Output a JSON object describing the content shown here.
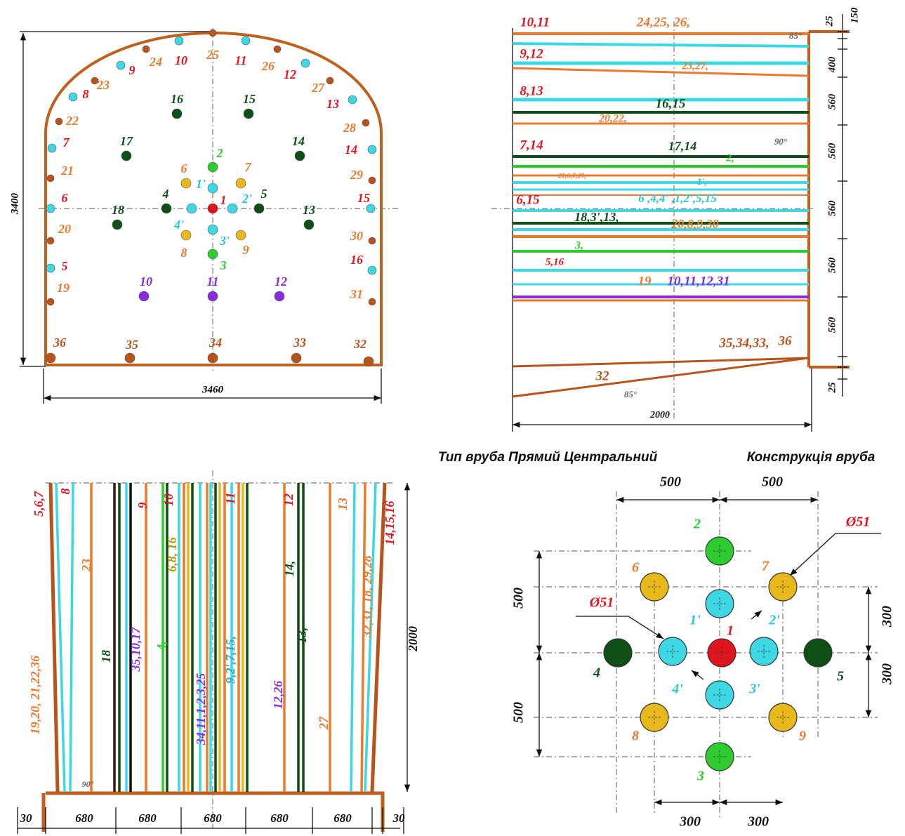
{
  "face_view": {
    "hole_labels": [
      "25",
      "10",
      "11",
      "24",
      "26",
      "9",
      "12",
      "23",
      "27",
      "8",
      "13",
      "22",
      "28",
      "7",
      "14",
      "21",
      "29",
      "6",
      "15",
      "20",
      "30",
      "5",
      "16",
      "19",
      "31",
      "36",
      "35",
      "34",
      "33",
      "32",
      "16",
      "15",
      "17",
      "14",
      "18",
      "13",
      "1",
      "1'",
      "2'",
      "3'",
      "4'",
      "2",
      "3",
      "4",
      "5",
      "6",
      "7",
      "8",
      "9",
      "10",
      "11",
      "12"
    ],
    "height": "3400",
    "width": "3460"
  },
  "section_view": {
    "labels": [
      "10,11",
      "24,25, 26,",
      "85°",
      "9,12",
      "23,27,",
      "8,13",
      "16,15",
      "20,22,",
      "90°",
      "7,14",
      "17,14",
      "2,",
      "21,6,7,29,",
      "1',",
      "6,15",
      "6 ,4,4' ,1,2',5,15",
      "18,3',13,",
      "20,8,9,30",
      "3,",
      "5,16",
      "19",
      "10,11,12,31",
      "35,34,33,",
      "36",
      "32",
      "85°",
      "2000"
    ],
    "dims": [
      "25",
      "150",
      "400",
      "560",
      "560",
      "560",
      "560",
      "560",
      "25"
    ]
  },
  "plan_view": {
    "labels": [
      "5,6,7",
      "8",
      "19,20, 21,22,36",
      "23",
      "18",
      "35,10,17",
      "4,",
      "9",
      "10",
      "6,8, 16",
      "34,11,1,2,3,25",
      "11",
      "9,2',7,15,",
      "12",
      "12,26",
      "14,",
      "13,",
      "27",
      "13",
      "32,31, 18, 29,28",
      "14,15,16",
      "90°",
      "2000"
    ],
    "dims": [
      "30",
      "680",
      "680",
      "680",
      "680",
      "680",
      "30"
    ]
  },
  "cut_design": {
    "type_title": "Тип вруба Прямий Центральний",
    "title": "Конструкція вруба",
    "hole_labels": [
      "2",
      "1'",
      "1",
      "2'",
      "4'",
      "3'",
      "4",
      "5",
      "6",
      "7",
      "8",
      "9",
      "3"
    ],
    "diameter_labels": [
      "Ø51",
      "Ø51"
    ],
    "dims": [
      "500",
      "500",
      "500",
      "500",
      "300",
      "300",
      "300",
      "300"
    ]
  }
}
